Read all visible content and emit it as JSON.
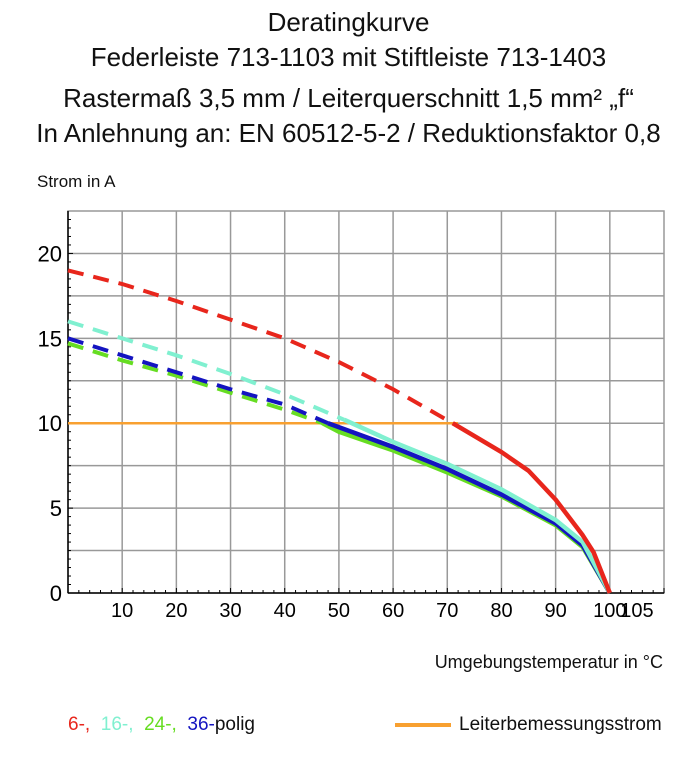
{
  "title_lines": [
    "Deratingkurve",
    "Federleiste 713-1103 mit Stiftleiste 713-1403",
    "Rastermaß 3,5 mm / Leiterquerschnitt 1,5 mm² „f“",
    "In Anlehnung an: EN 60512-5-2 / Reduktionsfaktor 0,8"
  ],
  "chart_data": {
    "type": "line",
    "ylabel": "Strom in A",
    "xlabel": "Umgebungstemperatur in °C",
    "xlim": [
      0,
      110
    ],
    "ylim": [
      0,
      22.5
    ],
    "x_ticks": [
      10,
      20,
      30,
      40,
      50,
      60,
      70,
      80,
      90,
      100,
      105
    ],
    "y_ticks": [
      0,
      5,
      10,
      15,
      20
    ],
    "x_grid_step": 10,
    "y_grid_step": 2.5,
    "grid": true,
    "legend_placement": "bottom",
    "series": [
      {
        "name": "6-,",
        "color": "#e8261c",
        "dashed": [
          [
            0,
            19
          ],
          [
            10,
            18.2
          ],
          [
            20,
            17.2
          ],
          [
            30,
            16.1
          ],
          [
            40,
            15
          ],
          [
            50,
            13.6
          ],
          [
            60,
            12
          ],
          [
            71,
            10
          ]
        ],
        "solid": [
          [
            71,
            10
          ],
          [
            80,
            8.3
          ],
          [
            85,
            7.2
          ],
          [
            90,
            5.5
          ],
          [
            95,
            3.4
          ],
          [
            97,
            2.4
          ],
          [
            100,
            0
          ]
        ]
      },
      {
        "name": "16-,",
        "color": "#80f0d0",
        "dashed": [
          [
            0,
            16
          ],
          [
            10,
            15
          ],
          [
            20,
            14
          ],
          [
            30,
            12.9
          ],
          [
            40,
            11.7
          ],
          [
            51,
            10.2
          ]
        ],
        "solid": [
          [
            51,
            10.2
          ],
          [
            60,
            8.9
          ],
          [
            70,
            7.6
          ],
          [
            80,
            6.1
          ],
          [
            90,
            4.3
          ],
          [
            95,
            3
          ],
          [
            100,
            0
          ]
        ]
      },
      {
        "name": "24-,",
        "color": "#66dd22",
        "dashed": [
          [
            0,
            14.7
          ],
          [
            10,
            13.7
          ],
          [
            20,
            12.8
          ],
          [
            30,
            11.8
          ],
          [
            40,
            10.8
          ],
          [
            47,
            10
          ]
        ],
        "solid": [
          [
            47,
            10
          ],
          [
            50,
            9.5
          ],
          [
            60,
            8.4
          ],
          [
            70,
            7.1
          ],
          [
            80,
            5.7
          ],
          [
            90,
            4
          ],
          [
            95,
            2.7
          ],
          [
            100,
            0
          ]
        ]
      },
      {
        "name": "36-",
        "color": "#1414c0",
        "dashed": [
          [
            0,
            15
          ],
          [
            10,
            14
          ],
          [
            20,
            13
          ],
          [
            30,
            12
          ],
          [
            40,
            11.1
          ],
          [
            48,
            10
          ]
        ],
        "solid": [
          [
            48,
            10
          ],
          [
            60,
            8.6
          ],
          [
            70,
            7.3
          ],
          [
            80,
            5.8
          ],
          [
            90,
            4.1
          ],
          [
            95,
            2.8
          ],
          [
            100,
            0
          ]
        ]
      },
      {
        "name": "Leiterbemessungsstrom",
        "color": "#f8a030",
        "dashed": [],
        "solid": [
          [
            0,
            10
          ],
          [
            72,
            10
          ]
        ]
      }
    ]
  },
  "legend": {
    "suffix": "polig",
    "rated_label": "Leiterbemessungsstrom"
  }
}
